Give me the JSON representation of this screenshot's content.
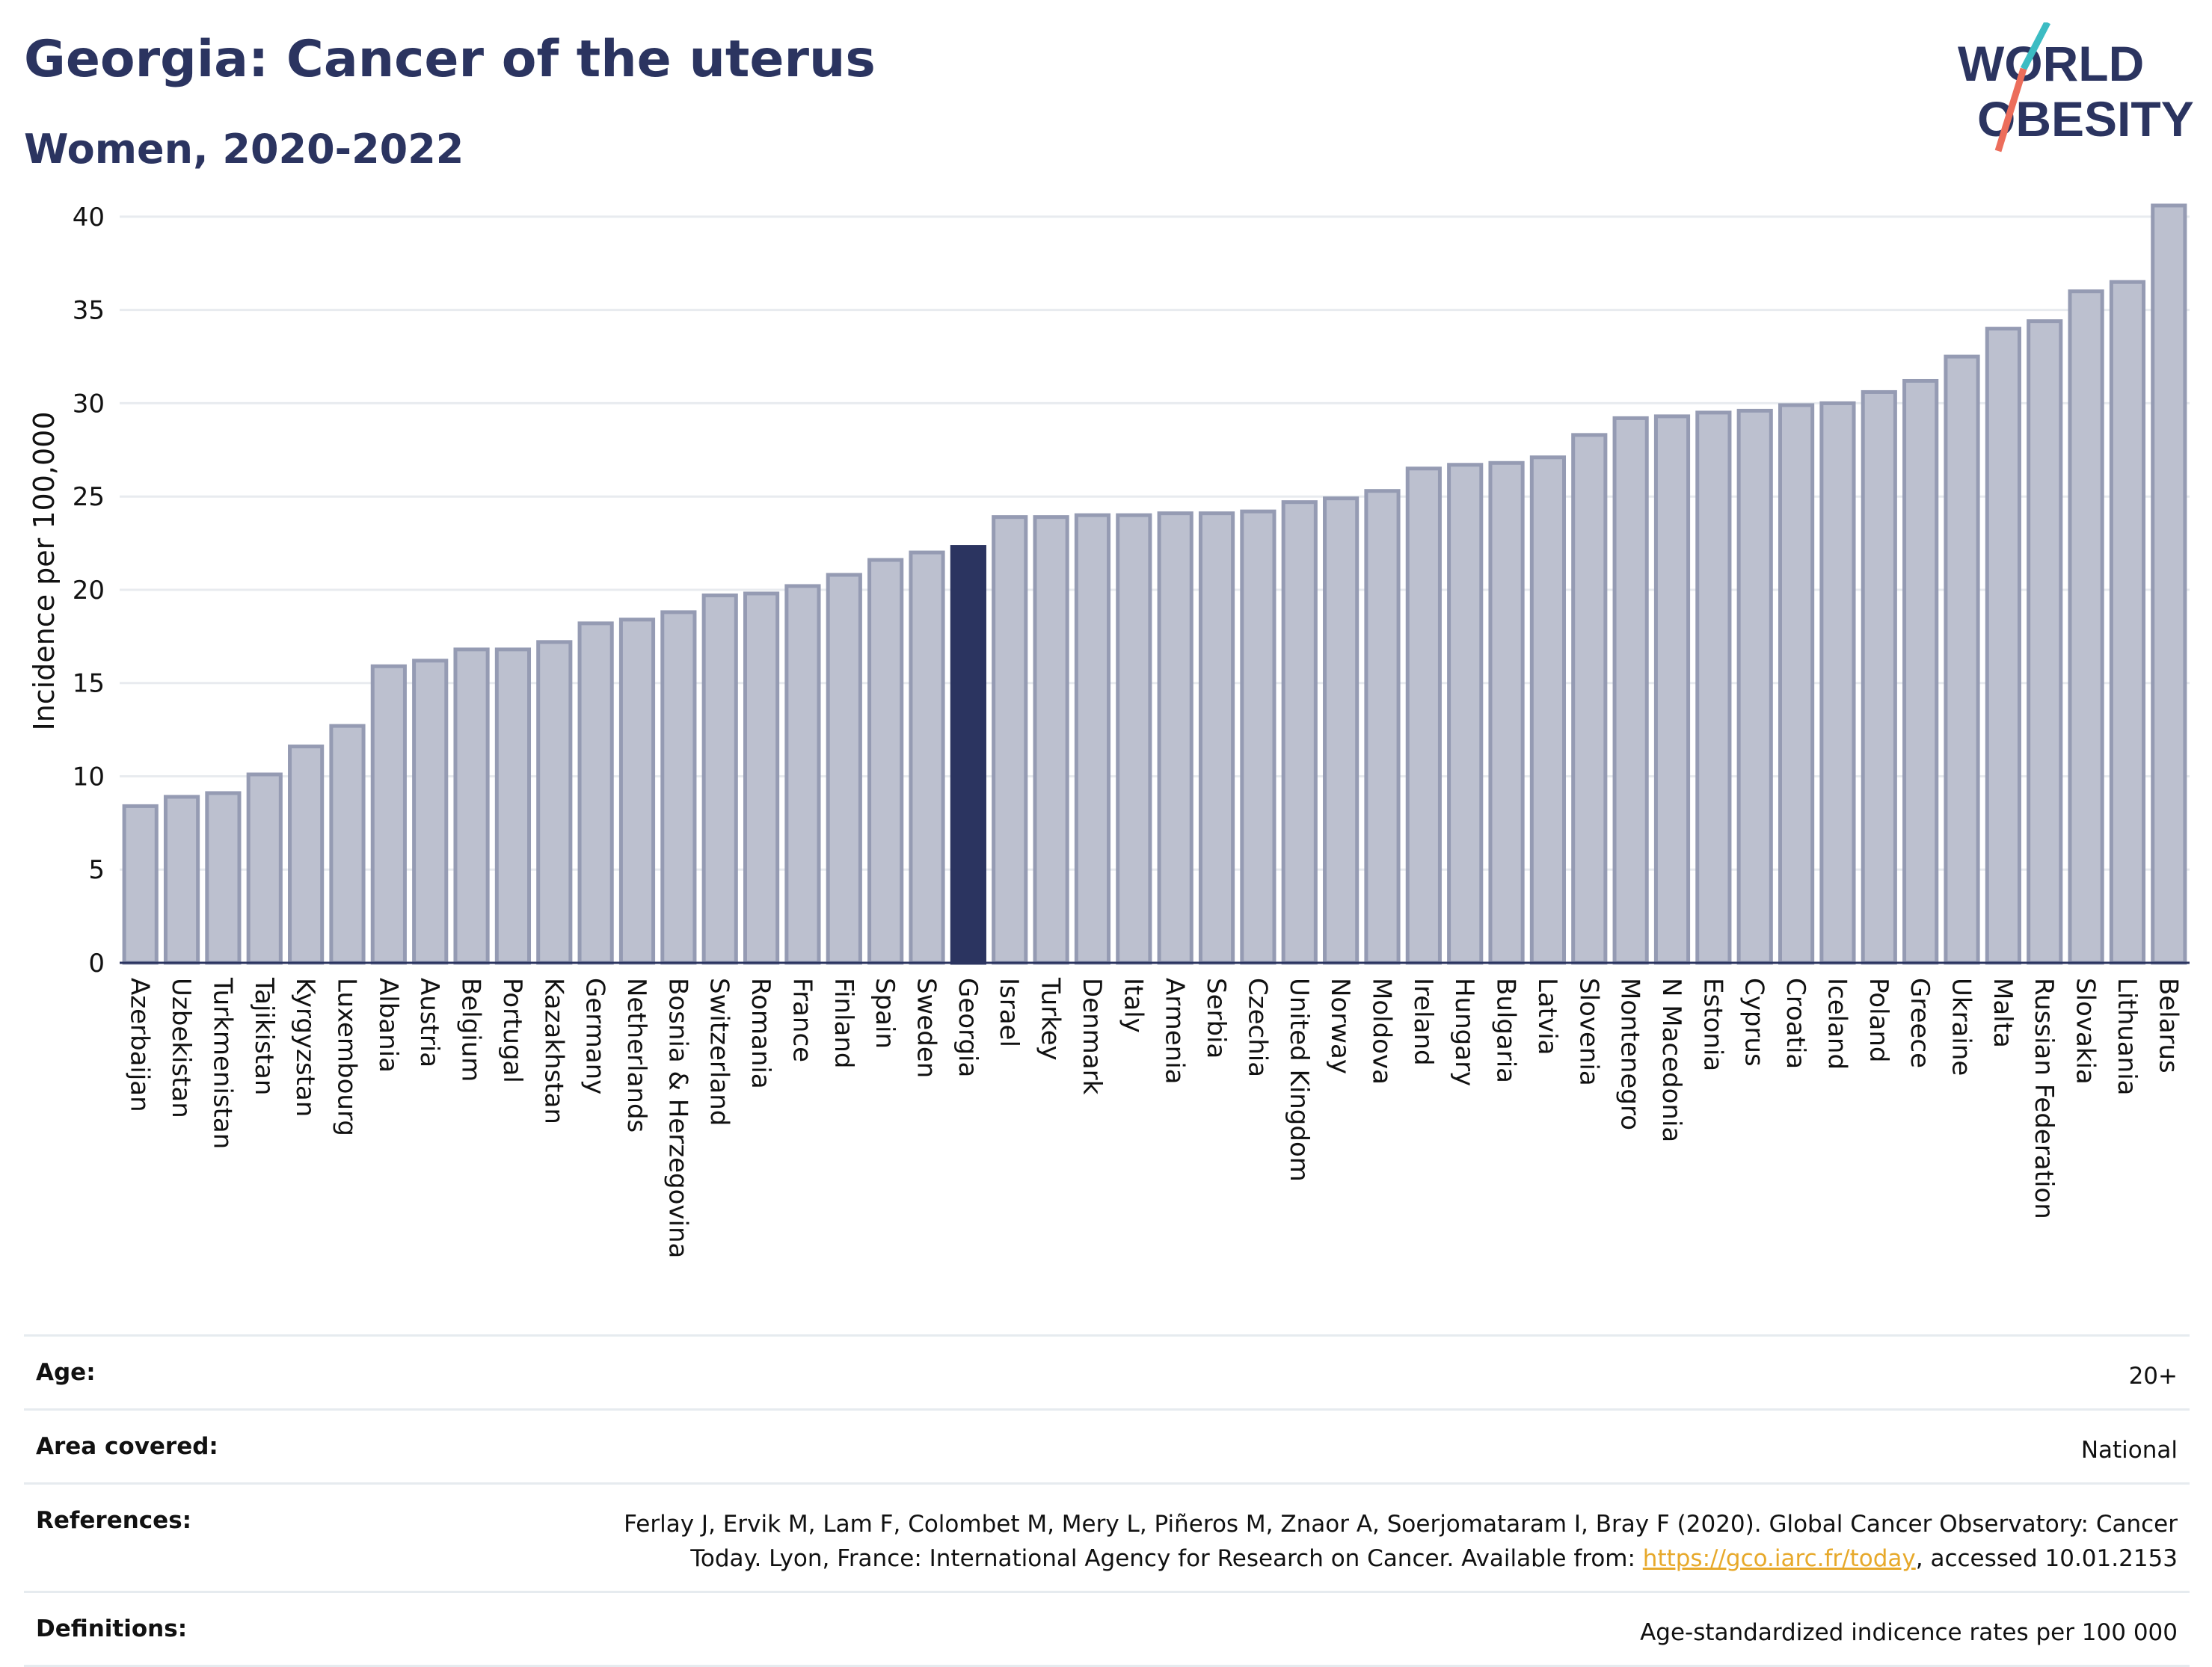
{
  "header": {
    "title": "Georgia: Cancer of the uterus",
    "subtitle": "Women, 2020-2022"
  },
  "logo": {
    "line1": "WORLD",
    "line2": "OBESITY"
  },
  "chart_data": {
    "type": "bar",
    "ylabel": "Incidence per 100,000",
    "xlabel": "",
    "ylim": [
      0,
      42
    ],
    "yticks": [
      0,
      5,
      10,
      15,
      20,
      25,
      30,
      35,
      40
    ],
    "grid": true,
    "highlight": "Georgia",
    "colors": {
      "bar": "#bcc0cf",
      "bar_edge": "#959bb3",
      "highlight": "#2b3460"
    },
    "categories": [
      "Azerbaijan",
      "Uzbekistan",
      "Turkmenistan",
      "Tajikistan",
      "Kyrgyzstan",
      "Luxembourg",
      "Albania",
      "Austria",
      "Belgium",
      "Portugal",
      "Kazakhstan",
      "Germany",
      "Netherlands",
      "Bosnia & Herzegovina",
      "Switzerland",
      "Romania",
      "France",
      "Finland",
      "Spain",
      "Sweden",
      "Georgia",
      "Israel",
      "Turkey",
      "Denmark",
      "Italy",
      "Armenia",
      "Serbia",
      "Czechia",
      "United Kingdom",
      "Norway",
      "Moldova",
      "Ireland",
      "Hungary",
      "Bulgaria",
      "Latvia",
      "Slovenia",
      "Montenegro",
      "N Macedonia",
      "Estonia",
      "Cyprus",
      "Croatia",
      "Iceland",
      "Poland",
      "Greece",
      "Ukraine",
      "Malta",
      "Russian Federation",
      "Slovakia",
      "Lithuania",
      "Belarus"
    ],
    "values": [
      8.4,
      8.9,
      9.1,
      10.1,
      11.6,
      12.7,
      15.9,
      16.2,
      16.8,
      16.8,
      17.2,
      18.2,
      18.4,
      18.8,
      19.7,
      19.8,
      20.2,
      20.8,
      21.6,
      22.0,
      22.3,
      23.9,
      23.9,
      24.0,
      24.0,
      24.1,
      24.1,
      24.2,
      24.7,
      24.9,
      25.3,
      26.5,
      26.7,
      26.8,
      27.1,
      28.3,
      29.2,
      29.3,
      29.5,
      29.6,
      29.9,
      30.0,
      30.6,
      31.2,
      32.5,
      34.0,
      34.4,
      36.0,
      36.5,
      40.6
    ]
  },
  "info": {
    "rows": [
      {
        "label": "Age:",
        "value": "20+"
      },
      {
        "label": "Area covered:",
        "value": "National"
      },
      {
        "label": "Definitions:",
        "value": "Age-standardized indicence rates per 100 000"
      }
    ],
    "references": {
      "label": "References:",
      "text_before": "Ferlay J, Ervik M, Lam F, Colombet M, Mery L, Piñeros M, Znaor A, Soerjomataram I, Bray F (2020). Global Cancer Observatory: Cancer Today. Lyon, France: International Agency for Research on Cancer. Available from: ",
      "link": "https://gco.iarc.fr/today",
      "text_after": ", accessed 10.01.2153"
    }
  }
}
